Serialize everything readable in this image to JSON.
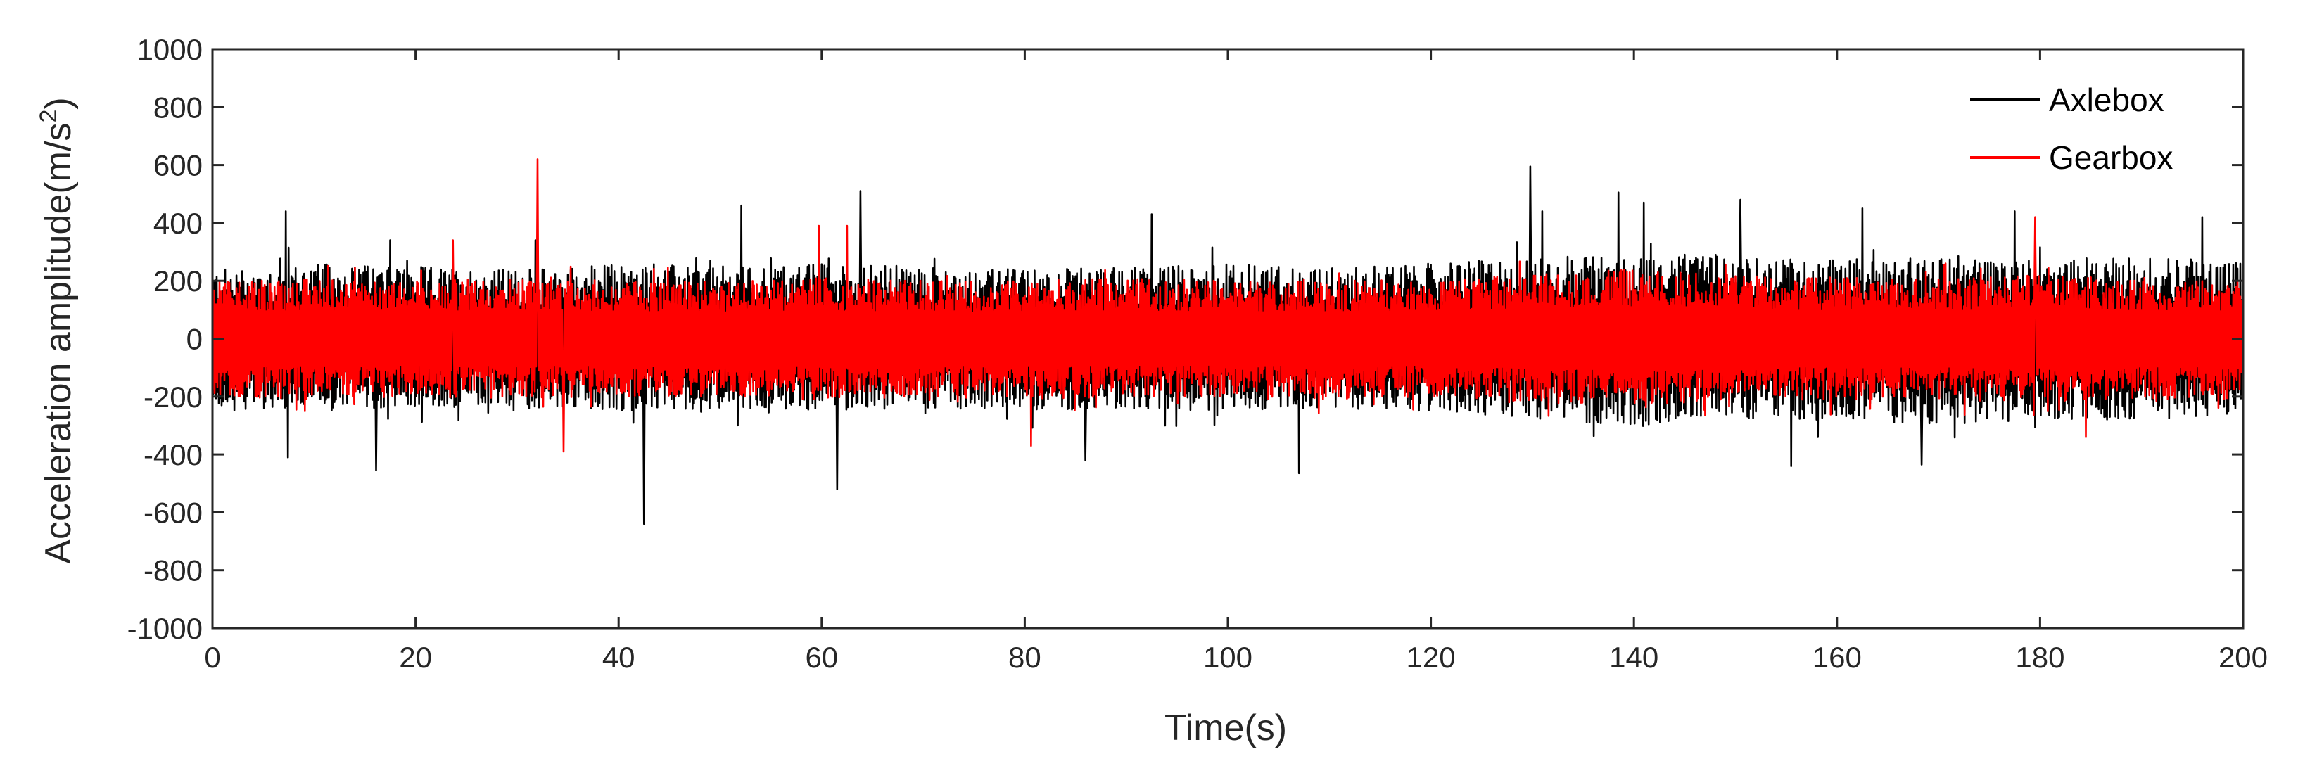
{
  "chart_data": {
    "type": "line",
    "xlabel": "Time(s)",
    "ylabel_main": "Acceleration amplitude(m/s",
    "ylabel_sup": "2",
    "ylabel_close": ")",
    "xlim": [
      0,
      200
    ],
    "ylim": [
      -1000,
      1000
    ],
    "xticks": [
      0,
      20,
      40,
      60,
      80,
      100,
      120,
      140,
      160,
      180,
      200
    ],
    "xtick_labels": [
      "0",
      "20",
      "40",
      "60",
      "80",
      "100",
      "120",
      "140",
      "160",
      "180",
      "200"
    ],
    "yticks": [
      -1000,
      -800,
      -600,
      -400,
      -200,
      0,
      200,
      400,
      600,
      800,
      1000
    ],
    "ytick_labels": [
      "-1000",
      "-800",
      "-600",
      "-400",
      "-200",
      "0",
      "200",
      "400",
      "600",
      "800",
      "1000"
    ],
    "grid": false,
    "legend_position": "top-right",
    "series": [
      {
        "name": "Axlebox",
        "color": "#000000",
        "envelope": {
          "time": [
            0,
            10,
            20,
            30,
            40,
            50,
            60,
            70,
            80,
            90,
            100,
            110,
            120,
            130,
            140,
            150,
            160,
            170,
            180,
            190,
            200
          ],
          "upper": [
            240,
            260,
            250,
            240,
            260,
            250,
            260,
            250,
            240,
            250,
            260,
            250,
            260,
            280,
            300,
            280,
            280,
            280,
            280,
            280,
            270
          ],
          "lower": [
            -240,
            -250,
            -240,
            -240,
            -250,
            -240,
            -250,
            -240,
            -250,
            -240,
            -250,
            -240,
            -250,
            -280,
            -300,
            -280,
            -280,
            -300,
            -280,
            -280,
            -270
          ]
        },
        "peaks": [
          {
            "t": 7.2,
            "v": 440
          },
          {
            "t": 7.4,
            "v": -410
          },
          {
            "t": 16.1,
            "v": -455
          },
          {
            "t": 17.5,
            "v": 340
          },
          {
            "t": 31.8,
            "v": 340
          },
          {
            "t": 42.5,
            "v": -640
          },
          {
            "t": 52.1,
            "v": 460
          },
          {
            "t": 61.5,
            "v": -520
          },
          {
            "t": 63.8,
            "v": 510
          },
          {
            "t": 86.0,
            "v": -420
          },
          {
            "t": 92.5,
            "v": 430
          },
          {
            "t": 107.0,
            "v": -465
          },
          {
            "t": 129.8,
            "v": 595
          },
          {
            "t": 131.0,
            "v": 440
          },
          {
            "t": 138.5,
            "v": 505
          },
          {
            "t": 141.0,
            "v": 470
          },
          {
            "t": 150.5,
            "v": 480
          },
          {
            "t": 155.5,
            "v": -440
          },
          {
            "t": 162.5,
            "v": 450
          },
          {
            "t": 168.3,
            "v": -435
          },
          {
            "t": 177.5,
            "v": 440
          },
          {
            "t": 196.0,
            "v": 420
          }
        ]
      },
      {
        "name": "Gearbox",
        "color": "#ff0000",
        "envelope": {
          "time": [
            0,
            10,
            20,
            30,
            40,
            50,
            60,
            70,
            80,
            90,
            100,
            110,
            120,
            130,
            140,
            150,
            160,
            170,
            180,
            190,
            200
          ],
          "upper": [
            200,
            210,
            200,
            210,
            200,
            200,
            210,
            200,
            200,
            210,
            200,
            200,
            210,
            220,
            240,
            220,
            210,
            210,
            220,
            210,
            210
          ],
          "lower": [
            -200,
            -210,
            -200,
            -210,
            -200,
            -200,
            -210,
            -200,
            -210,
            -200,
            -200,
            -210,
            -200,
            -220,
            -240,
            -220,
            -210,
            -210,
            -220,
            -210,
            -210
          ]
        },
        "peaks": [
          {
            "t": 32.0,
            "v": 620
          },
          {
            "t": 34.6,
            "v": -390
          },
          {
            "t": 59.7,
            "v": 390
          },
          {
            "t": 62.5,
            "v": 390
          },
          {
            "t": 80.6,
            "v": -370
          },
          {
            "t": 23.7,
            "v": 340
          },
          {
            "t": 179.5,
            "v": 420
          },
          {
            "t": 184.5,
            "v": -340
          }
        ]
      }
    ]
  }
}
